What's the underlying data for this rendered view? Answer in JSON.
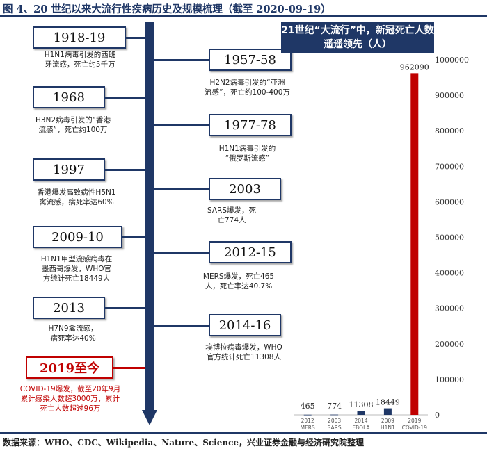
{
  "title": "图 4、20 世纪以来大流行性疾病历史及规模梳理（截至 2020-09-19）",
  "source": "数据来源：WHO、CDC、Wikipedia、Nature、Science，兴业证券金融与经济研究院整理",
  "timeline": {
    "left": [
      {
        "year": "1918-19",
        "desc": [
          "H1N1病毒引发的西班",
          "牙流感，死亡约5千万"
        ]
      },
      {
        "year": "1968",
        "desc": [
          "H3N2病毒引发的“香港",
          "流感”，死亡约100万"
        ]
      },
      {
        "year": "1997",
        "desc": [
          "香港爆发高致病性H5N1",
          "禽流感，病死率达60%"
        ]
      },
      {
        "year": "2009-10",
        "desc": [
          "H1N1甲型流感病毒在",
          "墨西哥爆发，WHO官",
          "方统计死亡18449人"
        ]
      },
      {
        "year": "2013",
        "desc": [
          "H7N9禽流感，",
          "病死率达40%"
        ]
      },
      {
        "year": "2019至今",
        "desc": [
          "COVID-19爆发，截至20年9月",
          "累计感染人数超3000万，累计",
          "死亡人数超过96万"
        ]
      }
    ],
    "right": [
      {
        "year": "1957-58",
        "desc": [
          "H2N2病毒引发的“亚洲",
          "流感”，死亡约100-400万"
        ]
      },
      {
        "year": "1977-78",
        "desc": [
          "H1N1病毒引发的",
          "“俄罗斯流感”"
        ]
      },
      {
        "year": "2003",
        "desc": [
          "SARS爆发，死",
          "亡774人"
        ]
      },
      {
        "year": "2012-15",
        "desc": [
          "MERS爆发，死亡465",
          "人，死亡率达40.7%"
        ]
      },
      {
        "year": "2014-16",
        "desc": [
          "埃博拉病毒爆发，WHO",
          "官方统计死亡11308人"
        ]
      }
    ]
  },
  "chart_data": {
    "type": "bar",
    "title": "21世纪“大流行”中，新冠死亡人数遥遥领先（人）",
    "categories": [
      [
        "2012",
        "MERS"
      ],
      [
        "2003",
        "SARS"
      ],
      [
        "2014",
        "EBOLA"
      ],
      [
        "2009",
        "H1N1"
      ],
      [
        "2019",
        "COVID-19"
      ]
    ],
    "values": [
      465,
      774,
      11308,
      18449,
      962090
    ],
    "data_labels": [
      "465",
      "774",
      "11308",
      "18449",
      "962090"
    ],
    "ylim": [
      0,
      1000000
    ],
    "yticks": [
      "0",
      "100000",
      "200000",
      "300000",
      "400000",
      "500000",
      "600000",
      "700000",
      "800000",
      "900000",
      "1000000"
    ],
    "colors": [
      "#1f3766",
      "#1f3766",
      "#1f3766",
      "#1f3766",
      "#c00000"
    ],
    "axis_position": "right",
    "grid": false
  },
  "colors": {
    "navy": "#1f3766",
    "red": "#c00000"
  }
}
